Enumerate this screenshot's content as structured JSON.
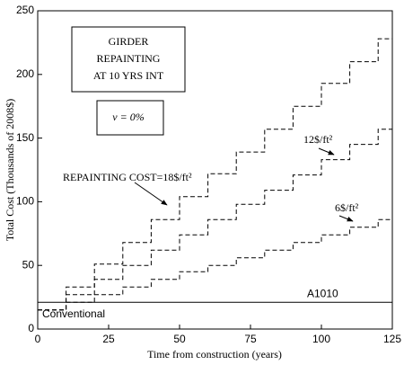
{
  "chart_data": {
    "type": "line",
    "step": true,
    "x_label": "Time from construction (years)",
    "y_label": "Total Cost (Thousands of 2008$)",
    "x": [
      0,
      10,
      20,
      30,
      40,
      50,
      60,
      70,
      80,
      90,
      100,
      110,
      120,
      125
    ],
    "series": [
      {
        "name": "REPAINTING COST=18$/ft²",
        "color": "#000000",
        "dash": true,
        "values": [
          15,
          33,
          51,
          68,
          86,
          104,
          122,
          139,
          157,
          175,
          193,
          210,
          228,
          228
        ]
      },
      {
        "name": "12$/ft²",
        "color": "#000000",
        "dash": true,
        "values": [
          15,
          27,
          39,
          50,
          62,
          74,
          86,
          98,
          109,
          121,
          133,
          145,
          157,
          157
        ]
      },
      {
        "name": "6$/ft²",
        "color": "#000000",
        "dash": true,
        "values": [
          15,
          21,
          27,
          33,
          39,
          45,
          50,
          56,
          62,
          68,
          74,
          80,
          86,
          86
        ]
      }
    ],
    "reference_lines": [
      {
        "name": "A1010",
        "value": 21
      }
    ],
    "annotations": [
      "Conventional"
    ],
    "box_title": [
      "GIRDER",
      "REPAINTING",
      "AT 10 YRS INT"
    ],
    "box_note": "ν = 0%",
    "xlim": [
      0,
      125
    ],
    "xticks": [
      0,
      25,
      50,
      75,
      100,
      125
    ],
    "ylim": [
      0,
      250
    ],
    "yticks": [
      0,
      50,
      100,
      150,
      200,
      250
    ]
  }
}
